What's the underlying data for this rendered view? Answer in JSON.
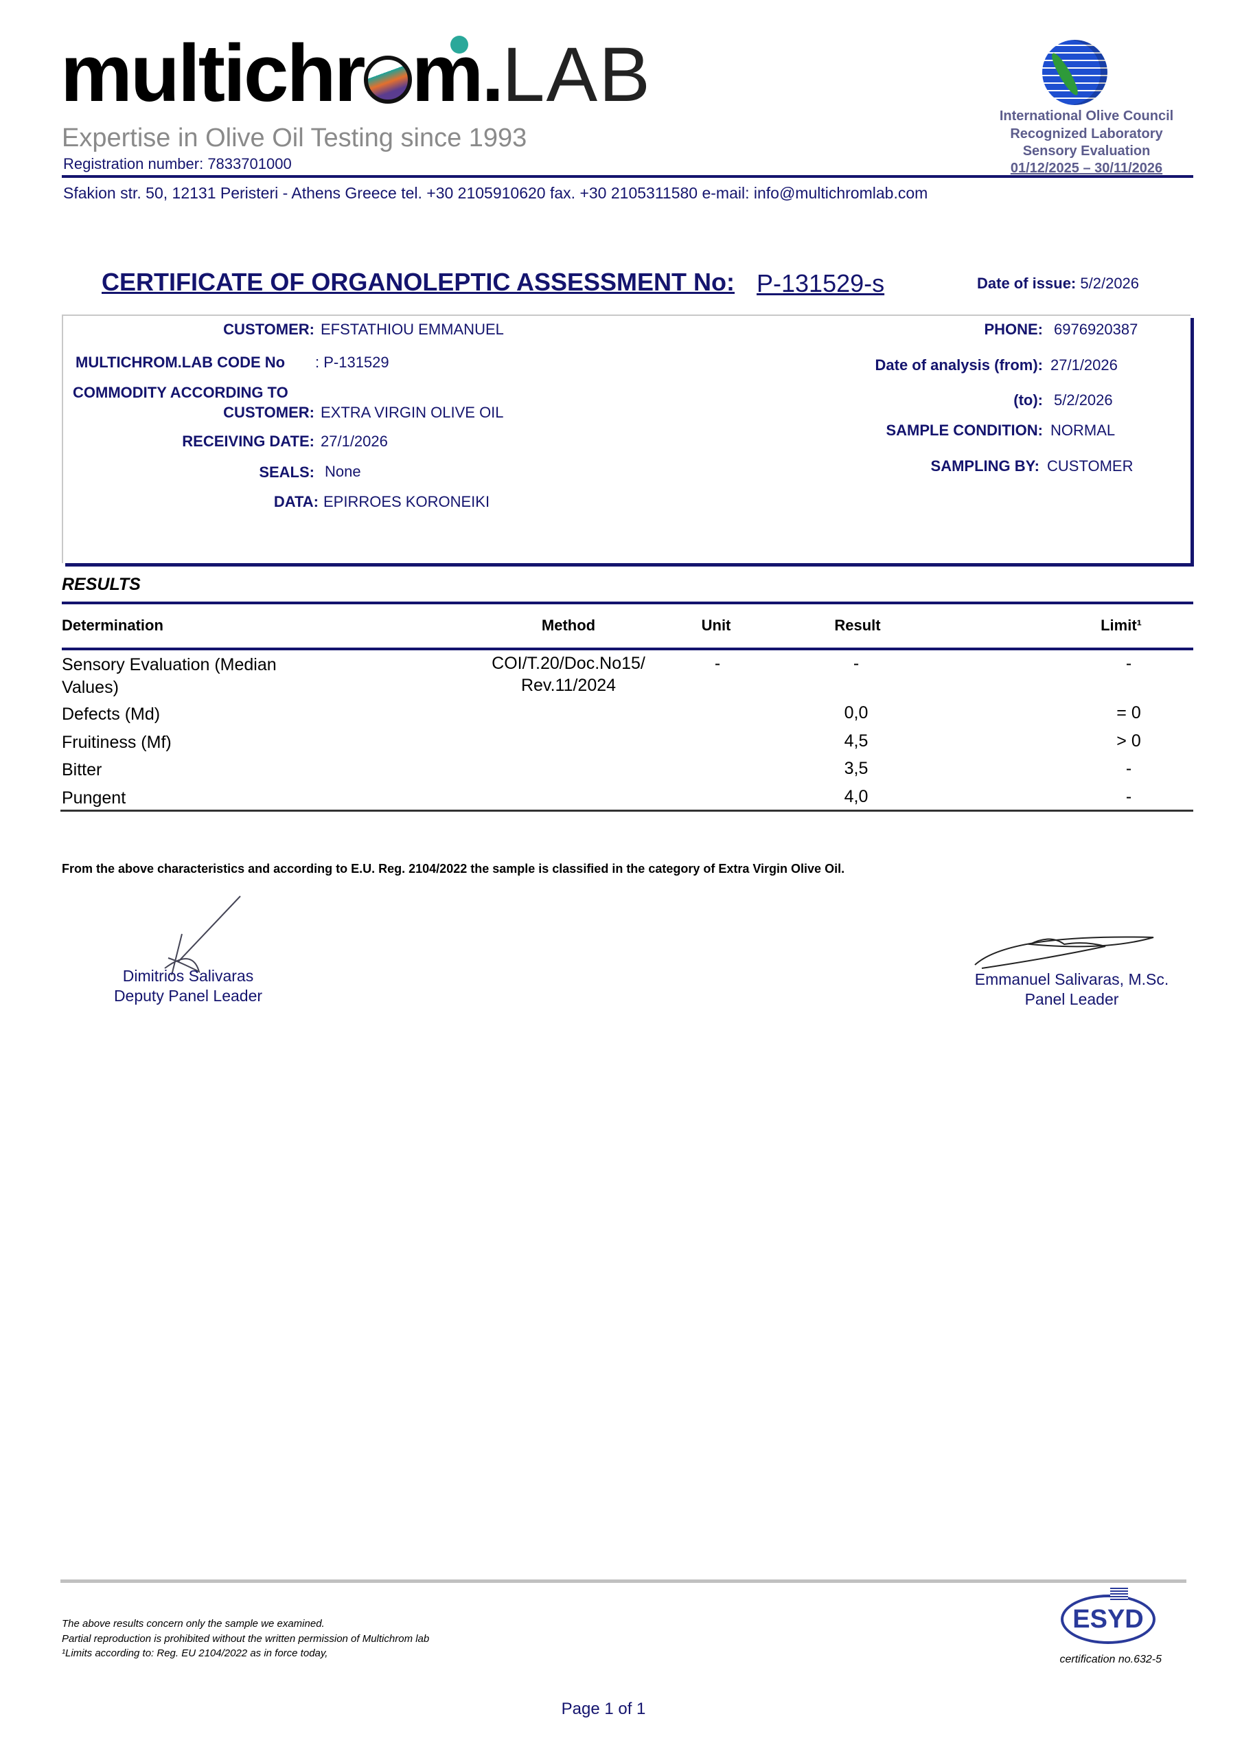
{
  "header": {
    "logo_text": "multichrom.LAB",
    "tagline": "Expertise in Olive Oil  Testing since 1993",
    "registration": "Registration number: 7833701000",
    "ioc": [
      "International Olive Council",
      "Recognized Laboratory",
      "Sensory Evaluation",
      "01/12/2025 – 30/11/2026"
    ],
    "address": "Sfakion  str. 50,  12131  Peristeri  -  Athens  Greece  tel. +30 2105910620  fax. +30 2105311580  e-mail: info@multichromlab.com"
  },
  "certificate": {
    "title": "CERTIFICATE OF ORGANOLEPTIC ASSESSMENT No:",
    "number": "P-131529-s",
    "issue_label": "Date of issue:",
    "issue_date": "5/2/2026"
  },
  "details": {
    "customer_label": "CUSTOMER:",
    "customer": "EFSTATHIOU EMMANUEL",
    "code_label": "MULTICHROM.LAB CODE No",
    "code": ": P-131529",
    "commodity_label_1": "COMMODITY ACCORDING TO",
    "commodity_label_2": "CUSTOMER:",
    "commodity": "EXTRA VIRGIN OLIVE OIL",
    "receiving_label": "RECEIVING DATE:",
    "receiving": "27/1/2026",
    "seals_label": "SEALS:",
    "seals": "None",
    "data_label": "DATA:",
    "data": "EPIRROES KORONEIKI",
    "phone_label": "PHONE:",
    "phone": "6976920387",
    "from_label": "Date of analysis (from):",
    "from": "27/1/2026",
    "to_label": "(to):",
    "to": "5/2/2026",
    "condition_label": "SAMPLE CONDITION:",
    "condition": "NORMAL",
    "sampling_label": "SAMPLING BY:",
    "sampling": "CUSTOMER"
  },
  "results": {
    "heading": "RESULTS",
    "columns": [
      "Determination",
      "Method",
      "Unit",
      "Result",
      "Limit¹"
    ],
    "rows": [
      {
        "determination": "Sensory Evaluation (Median",
        "determination_2": "Values)",
        "method": "COI/T.20/Doc.No15/",
        "method_2": "Rev.11/2024",
        "unit": "-",
        "result": "-",
        "limit": "-"
      },
      {
        "determination": "Defects (Md)",
        "result": "0,0",
        "limit": "= 0"
      },
      {
        "determination": "Fruitiness (Mf)",
        "result": "4,5",
        "limit": "> 0"
      },
      {
        "determination": "Bitter",
        "result": "3,5",
        "limit": "-"
      },
      {
        "determination": "Pungent",
        "result": "4,0",
        "limit": "-"
      }
    ],
    "statement": "From the above characteristics and according to E.U. Reg. 2104/2022 the sample is classified in the category of Extra Virgin Olive Oil."
  },
  "signatures": {
    "left_name": "Dimitrios Salivaras",
    "left_role": "Deputy Panel Leader",
    "right_name": "Emmanuel Salivaras, M.Sc.",
    "right_role": "Panel Leader"
  },
  "footer": {
    "notes": [
      "The above results concern only the sample we examined.",
      "Partial reproduction is prohibited without the written permission of  Multichrom lab",
      "¹Limits according to: Reg. EU 2104/2022 as in force today,"
    ],
    "esyd_logo_text": "ESYD",
    "certification": "certification no.632-5",
    "page": "Page 1 of 1"
  },
  "colors": {
    "navy": "#14146e",
    "gray_text": "#8a8a8a",
    "ioc_text": "#5c5c8c"
  }
}
